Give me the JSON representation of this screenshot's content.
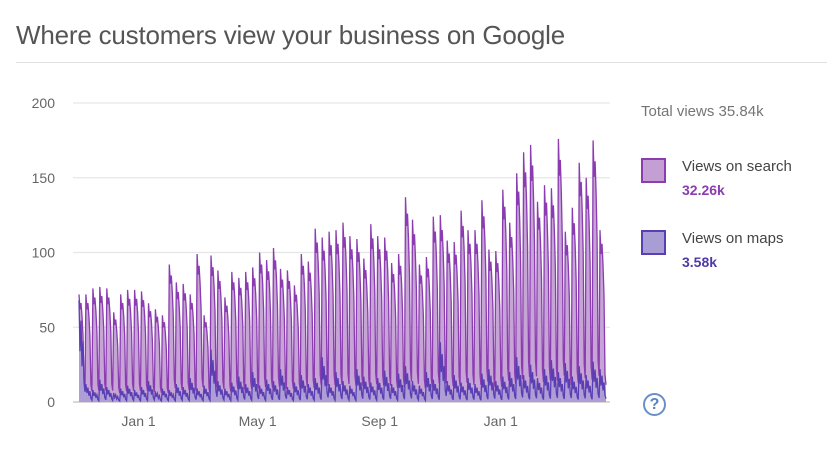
{
  "title": "Where customers view your business on Google",
  "total": "Total views 35.84k",
  "legend": [
    {
      "label": "Views on search",
      "value": "32.26k",
      "fill": "#c39fd3",
      "stroke": "#8b3cb0",
      "valueColor": "#8b3cb0"
    },
    {
      "label": "Views on maps",
      "value": "3.58k",
      "fill": "#a99dd5",
      "stroke": "#5a3fb3",
      "valueColor": "#4f3aa8"
    }
  ],
  "help_icon": "?",
  "chart_data": {
    "type": "area",
    "title": "Where customers view your business on Google",
    "xlabel": "",
    "ylabel": "",
    "ylim": [
      0,
      200
    ],
    "yticks": [
      "0",
      "50",
      "100",
      "150",
      "200"
    ],
    "xticks": [
      {
        "label": "Jan 1",
        "day": 60
      },
      {
        "label": "May 1",
        "day": 180
      },
      {
        "label": "Sep 1",
        "day": 303
      },
      {
        "label": "Jan 1",
        "day": 425
      }
    ],
    "grid": true,
    "granularity": "daily (weekly peaks × day-of-week profile), starting ~Nov 2",
    "day_profile": {
      "search": [
        1.0,
        0.86,
        0.92,
        0.8,
        0.62,
        0.16,
        0.1
      ],
      "maps": [
        1.0,
        0.5,
        0.8,
        0.35,
        0.6,
        0.2,
        0.1
      ]
    },
    "series": [
      {
        "name": "Views on search",
        "weekly_peaks": [
          72,
          72,
          76,
          77,
          76,
          60,
          72,
          75,
          75,
          74,
          66,
          62,
          58,
          92,
          80,
          79,
          72,
          99,
          58,
          98,
          88,
          70,
          87,
          83,
          87,
          90,
          100,
          95,
          103,
          89,
          88,
          78,
          99,
          94,
          116,
          110,
          114,
          115,
          120,
          111,
          109,
          96,
          119,
          111,
          110,
          93,
          99,
          137,
          122,
          92,
          97,
          124,
          125,
          108,
          107,
          128,
          115,
          115,
          135,
          102,
          101,
          142,
          120,
          153,
          167,
          172,
          134,
          145,
          143,
          176,
          114,
          130,
          160,
          150,
          175,
          115
        ]
      },
      {
        "name": "Views on maps",
        "weekly_peaks": [
          68,
          12,
          8,
          15,
          10,
          6,
          9,
          11,
          8,
          10,
          14,
          7,
          9,
          8,
          12,
          10,
          16,
          9,
          11,
          35,
          14,
          9,
          13,
          17,
          12,
          20,
          11,
          15,
          14,
          22,
          10,
          13,
          18,
          12,
          16,
          30,
          12,
          20,
          14,
          11,
          22,
          17,
          13,
          16,
          21,
          12,
          19,
          24,
          14,
          11,
          20,
          15,
          40,
          14,
          18,
          13,
          16,
          12,
          19,
          22,
          14,
          17,
          20,
          30,
          18,
          25,
          16,
          22,
          28,
          20,
          26,
          17,
          24,
          18,
          27,
          22
        ]
      }
    ]
  }
}
